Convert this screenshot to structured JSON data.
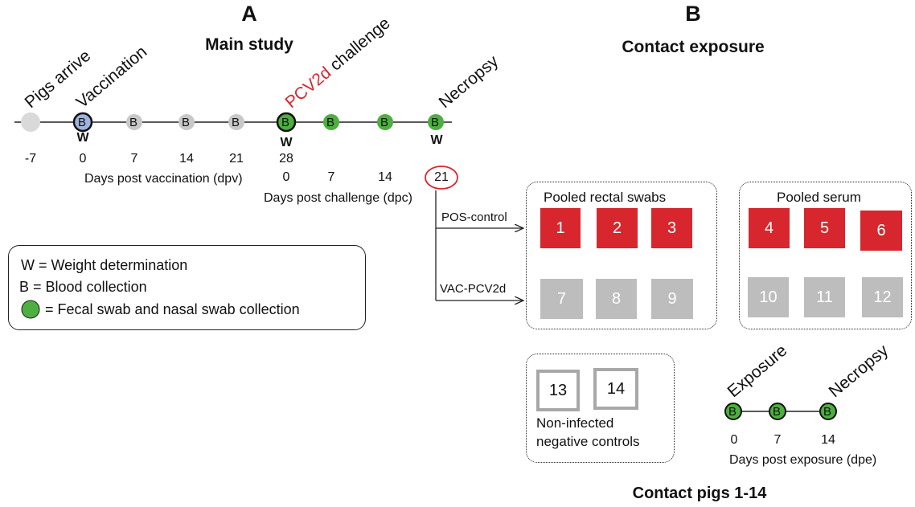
{
  "panel_a": {
    "letter": "A",
    "title": "Main study",
    "events": {
      "pigs_arrive": "Pigs arrive",
      "vaccination": "Vaccination",
      "challenge_virus": "PCV2d",
      "challenge_word": " challenge",
      "necropsy": "Necropsy"
    },
    "node_letter": "B",
    "weight_mark": "W",
    "dpv_ticks": [
      "-7",
      "0",
      "7",
      "14",
      "21",
      "28"
    ],
    "dpv_label": "Days post vaccination (dpv)",
    "dpc_ticks": [
      "0",
      "7",
      "14",
      "21"
    ],
    "dpc_label": "Days post challenge (dpc)",
    "groups": [
      "POS-control",
      "VAC-PCV2d"
    ],
    "colors": {
      "challenge_text": "#d7262e",
      "vaccinated_node": "#9fb3de",
      "green_node": "#4caf3f",
      "gray_node": "#c8c8c8"
    }
  },
  "legend": {
    "w": "W = Weight determination",
    "b": " B =  Blood collection",
    "green": "=  Fecal swab and nasal swab collection"
  },
  "panel_b": {
    "letter": "B",
    "title": "Contact exposure",
    "pooled_rectal": "Pooled rectal swabs",
    "pooled_serum": "Pooled serum",
    "rectal_pos": [
      "1",
      "2",
      "3"
    ],
    "serum_pos": [
      "4",
      "5",
      "6"
    ],
    "rectal_vac": [
      "7",
      "8",
      "9"
    ],
    "serum_vac": [
      "10",
      "11",
      "12"
    ],
    "negatives": [
      "13",
      "14"
    ],
    "neg_label_1": "Non-infected",
    "neg_label_2": "negative controls",
    "exposure": "Exposure",
    "necropsy": "Necropsy",
    "dpe_ticks": [
      "0",
      "7",
      "14"
    ],
    "dpe_label": "Days post exposure (dpe)",
    "footer": "Contact pigs 1-14",
    "colors": {
      "pos": "#d7262e",
      "vac": "#bdbdbd"
    }
  }
}
